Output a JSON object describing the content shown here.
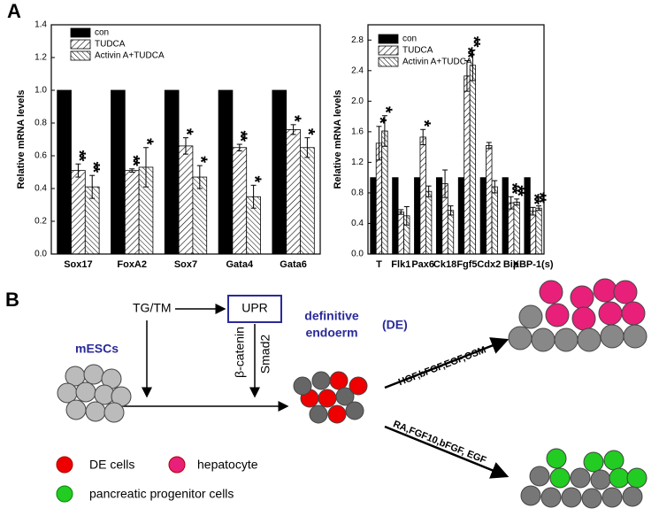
{
  "panel_label_a": "A",
  "chart_data": [
    {
      "type": "bar",
      "y_label": "Relative mRNA levels",
      "categories": [
        "Sox17",
        "FoxA2",
        "Sox7",
        "Gata4",
        "Gata6"
      ],
      "series": [
        {
          "name": "con",
          "color": "#000000",
          "hatch": "none",
          "values": [
            1,
            1,
            1,
            1,
            1
          ]
        },
        {
          "name": "TUDCA",
          "color": "#ffffff",
          "hatch": "forward",
          "values": [
            0.51,
            0.51,
            0.66,
            0.65,
            0.76
          ],
          "errors": [
            0.04,
            0.01,
            0.05,
            0.02,
            0.03
          ],
          "annotations": [
            "**",
            "**",
            "*",
            "**",
            "*"
          ]
        },
        {
          "name": "Activin A+TUDCA",
          "color": "#ffffff",
          "hatch": "back",
          "values": [
            0.41,
            0.53,
            0.47,
            0.35,
            0.65
          ],
          "errors": [
            0.07,
            0.12,
            0.07,
            0.07,
            0.06
          ],
          "annotations": [
            "**",
            "*",
            "*",
            "*",
            "*"
          ]
        }
      ],
      "ylim": [
        0,
        1.4
      ],
      "yticks": [
        {
          "value": 0,
          "label": "0.0"
        },
        0.2,
        0.4,
        0.6,
        0.8,
        {
          "value": 1,
          "label": "1.0"
        },
        1.2,
        1.4
      ]
    },
    {
      "type": "bar",
      "y_label": "Relative mRNA levels",
      "categories": [
        "T",
        "Flk1",
        "Pax6",
        "Ck18",
        "Fgf5",
        "Cdx2",
        "Bip",
        "XBP-1(s)"
      ],
      "series": [
        {
          "name": "con",
          "color": "#000000",
          "hatch": "none",
          "values": [
            1,
            1,
            1,
            1,
            1,
            1,
            1,
            1
          ]
        },
        {
          "name": "TUDCA",
          "color": "#ffffff",
          "hatch": "forward",
          "values": [
            1.45,
            0.55,
            1.53,
            0.92,
            2.33,
            1.42,
            0.67,
            0.56
          ],
          "errors": [
            0.22,
            0.03,
            0.1,
            0.18,
            0.2,
            0.04,
            0.08,
            0.05
          ],
          "annotations": [
            "*",
            null,
            "*",
            null,
            "**",
            null,
            "**",
            "**"
          ]
        },
        {
          "name": "Activin A+TUDCA",
          "color": "#ffffff",
          "hatch": "back",
          "values": [
            1.61,
            0.5,
            0.82,
            0.57,
            2.47,
            0.88,
            0.68,
            0.6
          ],
          "errors": [
            0.2,
            0.12,
            0.07,
            0.06,
            0.2,
            0.08,
            0.04,
            0.03
          ],
          "annotations": [
            "*",
            null,
            null,
            null,
            "**",
            null,
            "**",
            "**"
          ]
        }
      ],
      "ylim": [
        0,
        3.0
      ],
      "yticks": [
        {
          "value": 0,
          "label": "0.0"
        },
        0.4,
        0.8,
        1.2,
        1.6,
        {
          "value": 2,
          "label": "2.0"
        },
        2.4,
        2.8
      ]
    }
  ],
  "diagram": {
    "label": "B",
    "tg_tm": "TG/TM",
    "upr": "UPR",
    "mescs": "mESCs",
    "beta_catenin": "β-catenin",
    "smad2": "Smad2",
    "definitive": "definitive",
    "endoderm": "endoerm",
    "de": "(DE)",
    "hepatic_factors": "HGF,bFGF,EGF,OSM",
    "pancreatic_factors": "RA,FGF10,bFGF, EGF",
    "legend": {
      "de_cells": "DE cells",
      "hepatocyte": "hepatocyte",
      "pancreatic": "pancreatic progenitor cells"
    }
  }
}
